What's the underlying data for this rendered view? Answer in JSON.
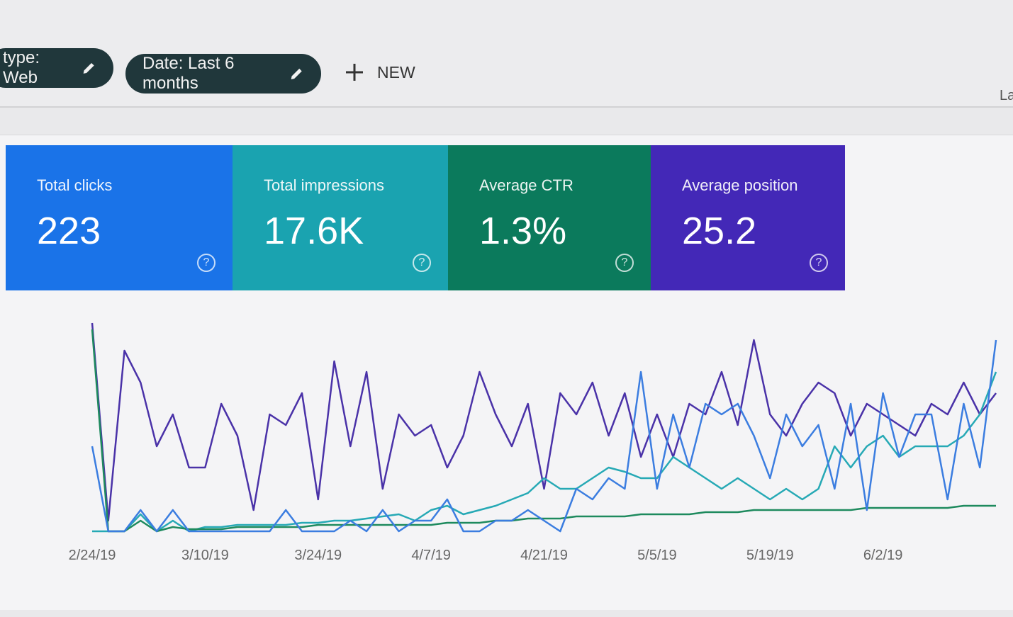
{
  "filters": [
    {
      "label": "type: Web",
      "icon": "pencil-icon"
    },
    {
      "label": "Date: Last 6 months",
      "icon": "pencil-icon"
    }
  ],
  "new_button": {
    "label": "NEW",
    "icon": "plus-icon"
  },
  "corner_text": "La",
  "cards": [
    {
      "label": "Total clicks",
      "value": "223",
      "color": "#1a73e8"
    },
    {
      "label": "Total impressions",
      "value": "17.6K",
      "color": "#1aa3b0"
    },
    {
      "label": "Average CTR",
      "value": "1.3%",
      "color": "#0b7a5c"
    },
    {
      "label": "Average position",
      "value": "25.2",
      "color": "#4328b7"
    }
  ],
  "chart_data": {
    "type": "line",
    "grid": false,
    "x_tick_labels": [
      "2/24/19",
      "3/10/19",
      "3/24/19",
      "4/7/19",
      "4/21/19",
      "5/5/19",
      "5/19/19",
      "6/2/19"
    ],
    "x": [
      "2/24/19",
      "2/26/19",
      "2/28/19",
      "3/2/19",
      "3/4/19",
      "3/6/19",
      "3/8/19",
      "3/10/19",
      "3/12/19",
      "3/14/19",
      "3/16/19",
      "3/18/19",
      "3/20/19",
      "3/22/19",
      "3/24/19",
      "3/26/19",
      "3/28/19",
      "3/30/19",
      "4/1/19",
      "4/3/19",
      "4/5/19",
      "4/7/19",
      "4/9/19",
      "4/11/19",
      "4/13/19",
      "4/15/19",
      "4/17/19",
      "4/19/19",
      "4/21/19",
      "4/23/19",
      "4/25/19",
      "4/27/19",
      "4/29/19",
      "5/1/19",
      "5/3/19",
      "5/5/19",
      "5/7/19",
      "5/9/19",
      "5/11/19",
      "5/13/19",
      "5/15/19",
      "5/17/19",
      "5/19/19",
      "5/21/19",
      "5/23/19",
      "5/25/19",
      "5/27/19",
      "5/29/19",
      "5/31/19",
      "6/2/19",
      "6/4/19",
      "6/6/19",
      "6/8/19",
      "6/10/19",
      "6/12/19",
      "6/14/19",
      "6/16/19"
    ],
    "y_scale": "relative 0-100 per series (no y axis shown)",
    "series": [
      {
        "name": "Average position",
        "color": "#4a32a8",
        "values": [
          98,
          5,
          85,
          70,
          40,
          55,
          30,
          30,
          60,
          45,
          10,
          55,
          50,
          65,
          15,
          80,
          40,
          75,
          20,
          55,
          45,
          50,
          30,
          45,
          75,
          55,
          40,
          60,
          20,
          65,
          55,
          70,
          45,
          65,
          35,
          55,
          35,
          60,
          55,
          75,
          50,
          90,
          55,
          45,
          60,
          70,
          65,
          45,
          60,
          55,
          50,
          45,
          60,
          55,
          70,
          55,
          65
        ]
      },
      {
        "name": "Total impressions",
        "color": "#26a9b5",
        "values": [
          0,
          0,
          0,
          8,
          0,
          5,
          0,
          2,
          2,
          3,
          3,
          3,
          3,
          4,
          4,
          5,
          5,
          6,
          7,
          8,
          5,
          10,
          12,
          8,
          10,
          12,
          15,
          18,
          25,
          20,
          20,
          25,
          30,
          28,
          25,
          25,
          35,
          30,
          25,
          20,
          25,
          20,
          15,
          20,
          15,
          20,
          40,
          30,
          40,
          45,
          35,
          40,
          40,
          40,
          45,
          55,
          75
        ]
      },
      {
        "name": "Average CTR",
        "color": "#1e8a5e",
        "values": [
          95,
          0,
          0,
          5,
          0,
          2,
          1,
          1,
          1,
          2,
          2,
          2,
          2,
          2,
          3,
          3,
          3,
          3,
          3,
          3,
          3,
          3,
          4,
          4,
          4,
          5,
          5,
          6,
          6,
          6,
          7,
          7,
          7,
          7,
          8,
          8,
          8,
          8,
          9,
          9,
          9,
          10,
          10,
          10,
          10,
          10,
          10,
          10,
          11,
          11,
          11,
          11,
          11,
          11,
          12,
          12,
          12
        ]
      },
      {
        "name": "Total clicks",
        "color": "#3b7de0",
        "values": [
          40,
          0,
          0,
          10,
          0,
          10,
          0,
          0,
          0,
          0,
          0,
          0,
          10,
          0,
          0,
          0,
          5,
          0,
          10,
          0,
          5,
          5,
          15,
          0,
          0,
          5,
          5,
          10,
          5,
          0,
          20,
          15,
          25,
          20,
          75,
          20,
          55,
          30,
          60,
          55,
          60,
          45,
          25,
          55,
          40,
          50,
          20,
          60,
          10,
          65,
          35,
          55,
          55,
          15,
          60,
          30,
          90
        ]
      }
    ]
  }
}
